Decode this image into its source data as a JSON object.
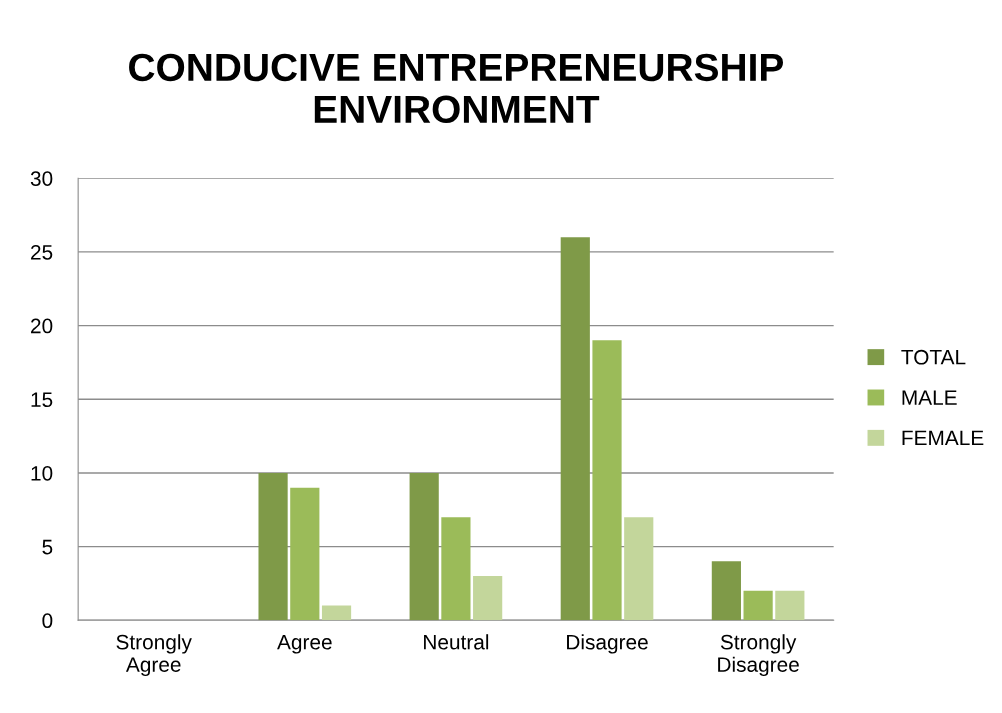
{
  "chart_data": {
    "type": "bar",
    "title": "CONDUCIVE ENTREPRENEURSHIP\nENVIRONMENT",
    "categories": [
      "Strongly\nAgree",
      "Agree",
      "Neutral",
      "Disagree",
      "Strongly\nDisagree"
    ],
    "series": [
      {
        "name": "TOTAL",
        "color": "#7f9a48",
        "values": [
          0,
          10,
          10,
          26,
          4
        ]
      },
      {
        "name": "MALE",
        "color": "#9bbb59",
        "values": [
          0,
          9,
          7,
          19,
          2
        ]
      },
      {
        "name": "FEMALE",
        "color": "#c3d69b",
        "values": [
          0,
          1,
          3,
          7,
          2
        ]
      }
    ],
    "ylim": [
      0,
      30
    ],
    "yticks": [
      0,
      5,
      10,
      15,
      20,
      25,
      30
    ],
    "grid": "y",
    "legend": "right"
  }
}
